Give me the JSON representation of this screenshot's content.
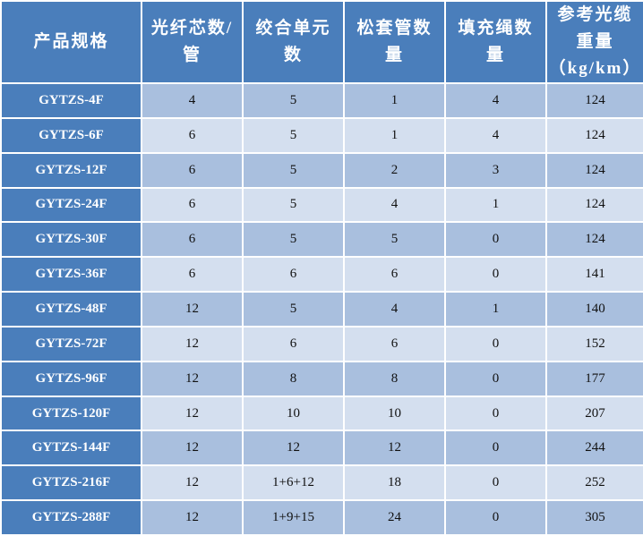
{
  "table": {
    "headers": [
      "产品规格",
      "光纤芯数/\n管",
      "绞合单元\n数",
      "松套管数\n量",
      "填充绳数\n量",
      "参考光缆\n重量\n（kg/km）"
    ],
    "rows": [
      [
        "GYTZS-4F",
        "4",
        "5",
        "1",
        "4",
        "124"
      ],
      [
        "GYTZS-6F",
        "6",
        "5",
        "1",
        "4",
        "124"
      ],
      [
        "GYTZS-12F",
        "6",
        "5",
        "2",
        "3",
        "124"
      ],
      [
        "GYTZS-24F",
        "6",
        "5",
        "4",
        "1",
        "124"
      ],
      [
        "GYTZS-30F",
        "6",
        "5",
        "5",
        "0",
        "124"
      ],
      [
        "GYTZS-36F",
        "6",
        "6",
        "6",
        "0",
        "141"
      ],
      [
        "GYTZS-48F",
        "12",
        "5",
        "4",
        "1",
        "140"
      ],
      [
        "GYTZS-72F",
        "12",
        "6",
        "6",
        "0",
        "152"
      ],
      [
        "GYTZS-96F",
        "12",
        "8",
        "8",
        "0",
        "177"
      ],
      [
        "GYTZS-120F",
        "12",
        "10",
        "10",
        "0",
        "207"
      ],
      [
        "GYTZS-144F",
        "12",
        "12",
        "12",
        "0",
        "244"
      ],
      [
        "GYTZS-216F",
        "12",
        "1+6+12",
        "18",
        "0",
        "252"
      ],
      [
        "GYTZS-288F",
        "12",
        "1+9+15",
        "24",
        "0",
        "305"
      ]
    ],
    "colors": {
      "header": "#4a7ebb",
      "row_odd": "#a9bfde",
      "row_even": "#d4dfef",
      "border": "#ffffff"
    }
  }
}
